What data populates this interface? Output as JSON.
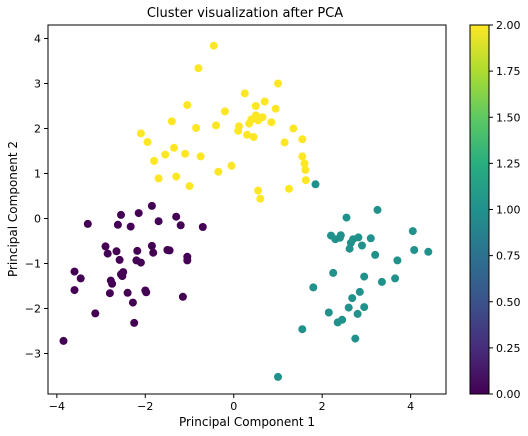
{
  "chart_data": {
    "type": "scatter",
    "title": "Cluster visualization after PCA",
    "xlabel": "Principal Component 1",
    "ylabel": "Principal Component 2",
    "xlim": [
      -4.2,
      4.8
    ],
    "ylim": [
      -3.9,
      4.3
    ],
    "xticks": [
      -4,
      -2,
      0,
      2,
      4
    ],
    "yticks": [
      -3,
      -2,
      -1,
      0,
      1,
      2,
      3,
      4
    ],
    "colorbar": {
      "range": [
        0.0,
        2.0
      ],
      "ticks": [
        "0.00",
        "0.25",
        "0.50",
        "0.75",
        "1.00",
        "1.25",
        "1.50",
        "1.75",
        "2.00"
      ],
      "colormap": "viridis"
    },
    "grid": false,
    "series": [
      {
        "cluster": 0,
        "color": "#440154",
        "points": [
          [
            -3.85,
            -2.72
          ],
          [
            -3.6,
            -1.18
          ],
          [
            -3.6,
            -1.59
          ],
          [
            -3.46,
            -1.33
          ],
          [
            -3.3,
            -0.12
          ],
          [
            -3.13,
            -2.11
          ],
          [
            -2.9,
            -0.62
          ],
          [
            -2.85,
            -0.78
          ],
          [
            -2.8,
            -1.66
          ],
          [
            -2.78,
            -1.38
          ],
          [
            -2.75,
            -1.45
          ],
          [
            -2.65,
            -0.73
          ],
          [
            -2.62,
            -0.14
          ],
          [
            -2.58,
            -0.92
          ],
          [
            -2.55,
            0.08
          ],
          [
            -2.55,
            -1.24
          ],
          [
            -2.52,
            -1.28
          ],
          [
            -2.5,
            -1.19
          ],
          [
            -2.4,
            -1.65
          ],
          [
            -2.33,
            -0.18
          ],
          [
            -2.28,
            -1.87
          ],
          [
            -2.25,
            -2.32
          ],
          [
            -2.2,
            -0.93
          ],
          [
            -2.18,
            -0.72
          ],
          [
            -2.15,
            0.12
          ],
          [
            -2.1,
            -0.98
          ],
          [
            -2.0,
            -1.6
          ],
          [
            -1.98,
            -1.64
          ],
          [
            -1.85,
            0.28
          ],
          [
            -1.85,
            -0.61
          ],
          [
            -1.82,
            -0.76
          ],
          [
            -1.7,
            -0.06
          ],
          [
            -1.5,
            -0.7
          ],
          [
            -1.45,
            -0.71
          ],
          [
            -1.3,
            0.04
          ],
          [
            -1.2,
            -0.15
          ],
          [
            -1.15,
            -1.74
          ],
          [
            -1.05,
            -0.93
          ],
          [
            -1.05,
            -0.85
          ],
          [
            -0.7,
            -0.19
          ]
        ]
      },
      {
        "cluster": 1,
        "color": "#21918c",
        "points": [
          [
            1.0,
            -3.52
          ],
          [
            1.55,
            -2.46
          ],
          [
            1.8,
            -1.53
          ],
          [
            1.85,
            0.76
          ],
          [
            2.15,
            -2.09
          ],
          [
            2.2,
            -0.38
          ],
          [
            2.25,
            -1.21
          ],
          [
            2.3,
            -0.46
          ],
          [
            2.35,
            -2.31
          ],
          [
            2.4,
            -0.43
          ],
          [
            2.42,
            -0.37
          ],
          [
            2.45,
            -2.25
          ],
          [
            2.55,
            0.02
          ],
          [
            2.6,
            -1.98
          ],
          [
            2.62,
            -0.67
          ],
          [
            2.65,
            -0.54
          ],
          [
            2.68,
            -1.77
          ],
          [
            2.7,
            -0.46
          ],
          [
            2.75,
            -2.67
          ],
          [
            2.8,
            -2.12
          ],
          [
            2.82,
            -0.42
          ],
          [
            2.85,
            -1.63
          ],
          [
            2.9,
            -0.6
          ],
          [
            2.95,
            -1.29
          ],
          [
            2.95,
            -1.97
          ],
          [
            3.1,
            -0.44
          ],
          [
            3.2,
            -0.81
          ],
          [
            3.25,
            0.19
          ],
          [
            3.35,
            -1.41
          ],
          [
            3.65,
            -1.33
          ],
          [
            3.7,
            -0.93
          ],
          [
            4.05,
            -0.28
          ],
          [
            4.08,
            -0.7
          ],
          [
            4.4,
            -0.74
          ]
        ]
      },
      {
        "cluster": 2,
        "color": "#fde725",
        "points": [
          [
            -2.1,
            1.89
          ],
          [
            -1.95,
            1.7
          ],
          [
            -1.8,
            1.28
          ],
          [
            -1.7,
            0.89
          ],
          [
            -1.55,
            1.42
          ],
          [
            -1.4,
            2.16
          ],
          [
            -1.35,
            1.57
          ],
          [
            -1.3,
            0.93
          ],
          [
            -1.1,
            1.44
          ],
          [
            -1.05,
            2.52
          ],
          [
            -1.0,
            0.72
          ],
          [
            -0.85,
            2.01
          ],
          [
            -0.8,
            3.34
          ],
          [
            -0.75,
            1.38
          ],
          [
            -0.45,
            3.84
          ],
          [
            -0.4,
            2.07
          ],
          [
            -0.35,
            1.04
          ],
          [
            -0.2,
            2.38
          ],
          [
            -0.05,
            1.17
          ],
          [
            0.1,
            1.95
          ],
          [
            0.12,
            2.05
          ],
          [
            0.25,
            2.78
          ],
          [
            0.3,
            1.86
          ],
          [
            0.35,
            2.11
          ],
          [
            0.4,
            2.2
          ],
          [
            0.45,
            1.81
          ],
          [
            0.5,
            2.5
          ],
          [
            0.5,
            2.29
          ],
          [
            0.55,
            2.18
          ],
          [
            0.55,
            0.62
          ],
          [
            0.6,
            0.44
          ],
          [
            0.65,
            2.25
          ],
          [
            0.7,
            2.6
          ],
          [
            0.85,
            2.14
          ],
          [
            0.95,
            2.44
          ],
          [
            1.0,
            3.0
          ],
          [
            1.15,
            1.69
          ],
          [
            1.25,
            0.66
          ],
          [
            1.35,
            2.0
          ],
          [
            1.55,
            1.76
          ],
          [
            1.55,
            1.38
          ],
          [
            1.6,
            1.22
          ],
          [
            1.62,
            1.08
          ],
          [
            1.63,
            0.85
          ]
        ]
      }
    ]
  }
}
